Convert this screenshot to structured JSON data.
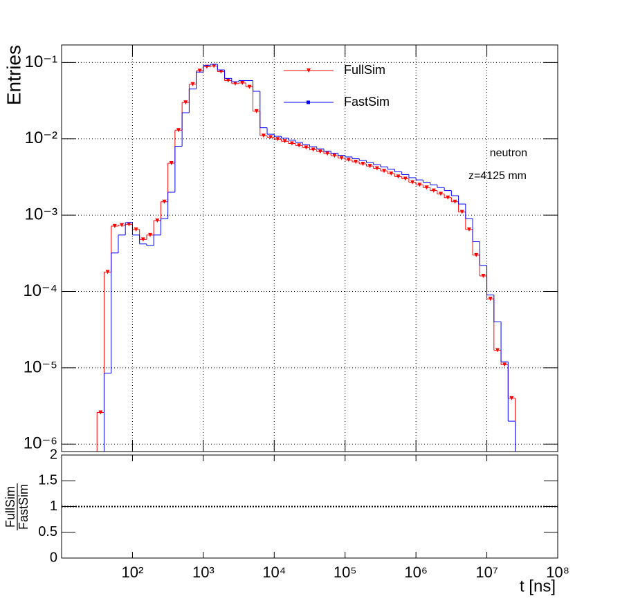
{
  "chart_data": [
    {
      "type": "histogram",
      "ylabel": "Entries",
      "xlim": [
        10,
        100000000
      ],
      "xticks": [
        100,
        1000,
        10000,
        100000,
        1000000,
        10000000,
        100000000
      ],
      "ylim": [
        8e-07,
        0.17
      ],
      "yticks": [
        {
          "value": 1e-06,
          "label": "10⁻⁶"
        },
        {
          "value": 1e-05,
          "label": "10⁻⁵"
        },
        {
          "value": 0.0001,
          "label": "10⁻⁴"
        },
        {
          "value": 0.001,
          "label": "10⁻³"
        },
        {
          "value": 0.01,
          "label": "10⁻²"
        },
        {
          "value": 0.1,
          "label": "10⁻¹"
        }
      ],
      "log_x": true,
      "log_y": true,
      "grid": true,
      "bins": [
        31.62,
        39.81,
        50.12,
        63.1,
        79.43,
        100,
        125.9,
        158.5,
        199.5,
        251.2,
        316.2,
        398.1,
        501.2,
        631,
        794.3,
        1000,
        1259,
        1585,
        1995,
        2512,
        3162,
        3981,
        5012,
        6310,
        7943,
        10000,
        12590,
        15850,
        19950,
        25120,
        31620,
        39810,
        50120,
        63100,
        79430,
        100000,
        125900,
        158500,
        199500,
        251200,
        316200,
        398100,
        501200,
        631000,
        794300,
        1000000,
        1259000,
        1585000,
        1995000,
        2512000,
        3162000,
        3981000,
        5012000,
        6310000,
        7943000,
        10000000,
        12590000,
        15850000,
        19950000,
        25120000,
        31620000
      ],
      "series": [
        {
          "name": "FullSim",
          "color": "#ff0000",
          "marker": "triangle",
          "markers": true,
          "values": [
            2.6e-06,
            0.00018,
            0.00072,
            0.00074,
            0.00076,
            0.00065,
            0.00048,
            0.00055,
            0.00085,
            0.0015,
            0.0048,
            0.013,
            0.03,
            0.052,
            0.078,
            0.088,
            0.09,
            0.076,
            0.058,
            0.053,
            0.054,
            0.048,
            0.023,
            0.011,
            0.0105,
            0.0099,
            0.0093,
            0.0087,
            0.0082,
            0.0077,
            0.0072,
            0.0068,
            0.0064,
            0.006,
            0.0056,
            0.0053,
            0.005,
            0.0047,
            0.0044,
            0.0041,
            0.0038,
            0.0035,
            0.0032,
            0.003,
            0.0027,
            0.0025,
            0.0023,
            0.0021,
            0.0019,
            0.0017,
            0.0015,
            0.0011,
            0.00065,
            0.0003,
            0.00016,
            8e-05,
            1.7e-05,
            1.1e-05,
            4e-06,
            6e-07
          ]
        },
        {
          "name": "FastSim",
          "color": "#0000ff",
          "marker": "square",
          "markers": false,
          "values": [
            7e-07,
            8.5e-06,
            0.00032,
            0.00055,
            0.0008,
            0.00055,
            0.00042,
            0.0004,
            0.00055,
            0.0009,
            0.002,
            0.008,
            0.022,
            0.045,
            0.075,
            0.092,
            0.095,
            0.08,
            0.062,
            0.056,
            0.058,
            0.058,
            0.042,
            0.014,
            0.0115,
            0.0108,
            0.0102,
            0.0096,
            0.009,
            0.0084,
            0.0079,
            0.0074,
            0.0069,
            0.0065,
            0.0061,
            0.0058,
            0.0055,
            0.0052,
            0.0049,
            0.0046,
            0.0043,
            0.004,
            0.0037,
            0.0034,
            0.0031,
            0.0029,
            0.0027,
            0.0025,
            0.0023,
            0.0021,
            0.0018,
            0.0014,
            0.0009,
            0.00045,
            0.00022,
            9e-05,
            4e-05,
            1.2e-05,
            2e-06,
            6e-07
          ]
        }
      ],
      "annotations": [
        "neutron",
        "z=4125 mm"
      ]
    },
    {
      "type": "ratio",
      "ylabel_numerator": "FullSim",
      "ylabel_denominator": "FastSim",
      "xlabel": "t [ns]",
      "xlim": [
        10,
        100000000
      ],
      "xticks": [
        {
          "value": 100,
          "label": "10²"
        },
        {
          "value": 1000,
          "label": "10³"
        },
        {
          "value": 10000,
          "label": "10⁴"
        },
        {
          "value": 100000,
          "label": "10⁵"
        },
        {
          "value": 1000000,
          "label": "10⁶"
        },
        {
          "value": 10000000,
          "label": "10⁷"
        },
        {
          "value": 100000000,
          "label": "10⁸"
        }
      ],
      "ylim": [
        0,
        2
      ],
      "yticks": [
        0,
        0.5,
        1,
        1.5,
        2
      ],
      "reference_line": 1
    }
  ]
}
